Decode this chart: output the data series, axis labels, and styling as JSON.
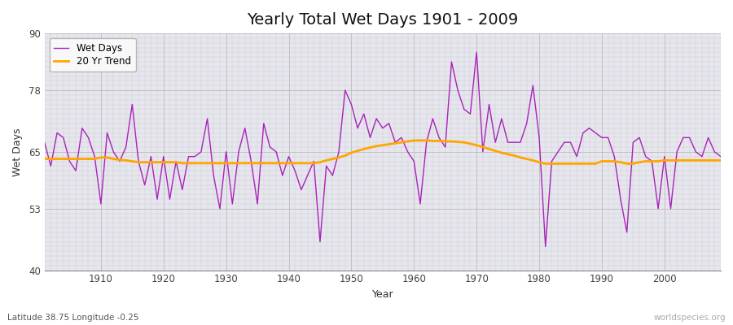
{
  "title": "Yearly Total Wet Days 1901 - 2009",
  "xlabel": "Year",
  "ylabel": "Wet Days",
  "subtitle_left": "Latitude 38.75 Longitude -0.25",
  "subtitle_right": "worldspecies.org",
  "ylim": [
    40,
    90
  ],
  "yticks": [
    40,
    53,
    65,
    78,
    90
  ],
  "line_color": "#AA22BB",
  "trend_color": "#FFA500",
  "bg_color": "#E6E6EE",
  "fig_color": "#F0F0F0",
  "legend_labels": [
    "Wet Days",
    "20 Yr Trend"
  ],
  "years": [
    1901,
    1902,
    1903,
    1904,
    1905,
    1906,
    1907,
    1908,
    1909,
    1910,
    1911,
    1912,
    1913,
    1914,
    1915,
    1916,
    1917,
    1918,
    1919,
    1920,
    1921,
    1922,
    1923,
    1924,
    1925,
    1926,
    1927,
    1928,
    1929,
    1930,
    1931,
    1932,
    1933,
    1934,
    1935,
    1936,
    1937,
    1938,
    1939,
    1940,
    1941,
    1942,
    1943,
    1944,
    1945,
    1946,
    1947,
    1948,
    1949,
    1950,
    1951,
    1952,
    1953,
    1954,
    1955,
    1956,
    1957,
    1958,
    1959,
    1960,
    1961,
    1962,
    1963,
    1964,
    1965,
    1966,
    1967,
    1968,
    1969,
    1970,
    1971,
    1972,
    1973,
    1974,
    1975,
    1976,
    1977,
    1978,
    1979,
    1980,
    1981,
    1982,
    1983,
    1984,
    1985,
    1986,
    1987,
    1988,
    1989,
    1990,
    1991,
    1992,
    1993,
    1994,
    1995,
    1996,
    1997,
    1998,
    1999,
    2000,
    2001,
    2002,
    2003,
    2004,
    2005,
    2006,
    2007,
    2008,
    2009
  ],
  "wet_days": [
    67,
    62,
    69,
    68,
    63,
    61,
    70,
    68,
    64,
    54,
    69,
    65,
    63,
    66,
    75,
    63,
    58,
    64,
    55,
    64,
    55,
    63,
    57,
    64,
    64,
    65,
    72,
    60,
    53,
    65,
    54,
    65,
    70,
    63,
    54,
    71,
    66,
    65,
    60,
    64,
    61,
    57,
    60,
    63,
    46,
    62,
    60,
    65,
    78,
    75,
    70,
    73,
    68,
    72,
    70,
    71,
    67,
    68,
    65,
    63,
    54,
    67,
    72,
    68,
    66,
    84,
    78,
    74,
    73,
    86,
    65,
    75,
    67,
    72,
    67,
    67,
    67,
    71,
    79,
    68,
    45,
    63,
    65,
    67,
    67,
    64,
    69,
    70,
    69,
    68,
    68,
    64,
    55,
    48,
    67,
    68,
    64,
    63,
    53,
    64,
    53,
    65,
    68,
    68,
    65,
    64,
    68,
    65,
    64
  ],
  "trend": [
    63.5,
    63.5,
    63.5,
    63.5,
    63.5,
    63.5,
    63.5,
    63.5,
    63.5,
    63.8,
    63.8,
    63.5,
    63.3,
    63.2,
    63.0,
    62.8,
    62.8,
    62.8,
    62.8,
    62.8,
    62.8,
    62.8,
    62.6,
    62.6,
    62.6,
    62.6,
    62.6,
    62.6,
    62.6,
    62.6,
    62.6,
    62.6,
    62.6,
    62.6,
    62.6,
    62.6,
    62.6,
    62.6,
    62.6,
    62.6,
    62.6,
    62.6,
    62.6,
    62.6,
    62.8,
    63.2,
    63.5,
    63.8,
    64.2,
    64.8,
    65.2,
    65.6,
    65.9,
    66.2,
    66.4,
    66.6,
    66.8,
    67.0,
    67.2,
    67.4,
    67.4,
    67.4,
    67.3,
    67.3,
    67.2,
    67.2,
    67.1,
    67.0,
    66.7,
    66.4,
    66.0,
    65.6,
    65.2,
    64.8,
    64.5,
    64.2,
    63.8,
    63.5,
    63.2,
    62.8,
    62.5,
    62.5,
    62.5,
    62.5,
    62.5,
    62.5,
    62.5,
    62.5,
    62.5,
    63.0,
    63.0,
    63.0,
    62.8,
    62.5,
    62.5,
    62.8,
    63.0,
    63.0,
    63.0,
    63.2,
    63.2,
    63.2,
    63.2,
    63.2,
    63.2,
    63.2,
    63.2,
    63.2,
    63.2
  ]
}
